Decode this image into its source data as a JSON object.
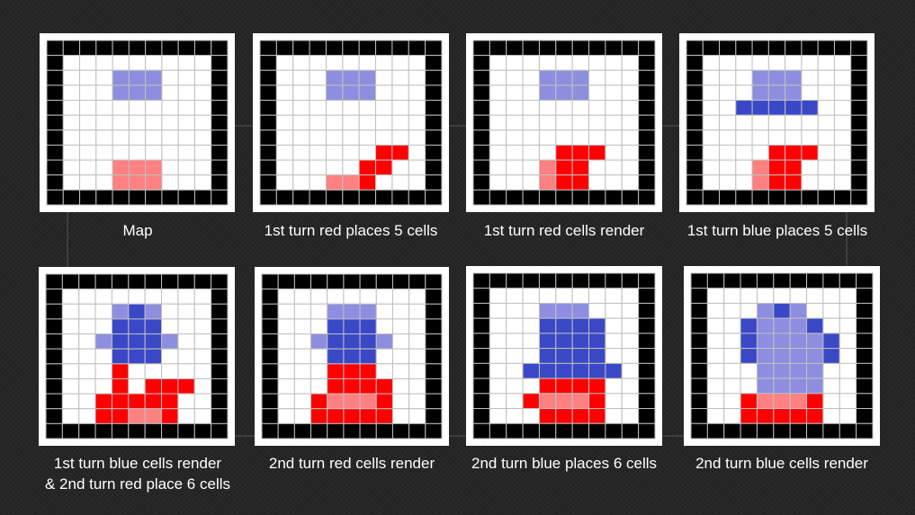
{
  "colors": {
    "wall": "#000000",
    "empty": "#ffffff",
    "grid": "#bfbfbf",
    "red_placed": "#ff8080",
    "red_render": "#ff0000",
    "blue_placed": "#8e8ee0",
    "blue_render": "#3a48c7",
    "text": "#ffffff",
    "background": "#262626"
  },
  "legend": {
    "W": "wall",
    ".": "empty",
    "r": "red_placed",
    "R": "red_render",
    "b": "blue_placed",
    "B": "blue_render"
  },
  "panels": [
    {
      "caption_lines": [
        "Map"
      ],
      "grid": [
        "WWWWWWWWWWW",
        "W.........W",
        "W...bbb...W",
        "W...bbb...W",
        "W.........W",
        "W.........W",
        "W.........W",
        "W.........W",
        "W...rrr...W",
        "W...rrr...W",
        "WWWWWWWWWWW"
      ]
    },
    {
      "caption_lines": [
        "1st turn red places 5 cells"
      ],
      "grid": [
        "WWWWWWWWWWW",
        "W.........W",
        "W...bbb...W",
        "W...bbb...W",
        "W.........W",
        "W.........W",
        "W.........W",
        "W......RR.W",
        "W.....RR..W",
        "W...rrR...W",
        "WWWWWWWWWWW"
      ]
    },
    {
      "caption_lines": [
        "1st turn red cells render"
      ],
      "grid": [
        "WWWWWWWWWWW",
        "W.........W",
        "W...bbb...W",
        "W...bbb...W",
        "W.........W",
        "W.........W",
        "W.........W",
        "W....RRR..W",
        "W...rRR...W",
        "W...rRR...W",
        "WWWWWWWWWWW"
      ]
    },
    {
      "caption_lines": [
        "1st turn blue places 5 cells"
      ],
      "grid": [
        "WWWWWWWWWWW",
        "W.........W",
        "W...bbb...W",
        "W...bbb...W",
        "W..BBBBB..W",
        "W.........W",
        "W.........W",
        "W....RRR..W",
        "W...rRR...W",
        "W...rRR...W",
        "WWWWWWWWWWW"
      ]
    },
    {
      "caption_lines": [
        "1st turn blue cells render",
        "& 2nd turn red place 6 cells"
      ],
      "grid": [
        "WWWWWWWWWWW",
        "W.........W",
        "W...bBb...W",
        "W...BBB...W",
        "W..bBBBb..W",
        "W...BBB...W",
        "W...R.....W",
        "W...R.RRR.W",
        "W..RRRRR..W",
        "W..RRrrR..W",
        "WWWWWWWWWWW"
      ]
    },
    {
      "caption_lines": [
        "2nd turn red cells render"
      ],
      "grid": [
        "WWWWWWWWWWW",
        "W.........W",
        "W...bbb...W",
        "W...BBB...W",
        "W..bBBBb..W",
        "W...BBB...W",
        "W...RRR...W",
        "W...RRRR..W",
        "W..RrrrR..W",
        "W..RRRRR..W",
        "WWWWWWWWWWW"
      ]
    },
    {
      "caption_lines": [
        "2nd turn blue places 6 cells"
      ],
      "grid": [
        "WWWWWWWWWWW",
        "W.........W",
        "W...bbb...W",
        "W...BBBB..W",
        "W...BBBB..W",
        "W...BBBB..W",
        "W..BBBBBB.W",
        "W...RRRR..W",
        "W..RrrrR..W",
        "W...RRRR..W",
        "WWWWWWWWWWW"
      ]
    },
    {
      "caption_lines": [
        "2nd turn blue cells render"
      ],
      "grid": [
        "WWWWWWWWWWW",
        "W.........W",
        "W...bBb...W",
        "W..BbbbB..W",
        "W..BbbbbB.W",
        "W..BbbbbB.W",
        "W...bbbb..W",
        "W...bbbb..W",
        "W..RrrrR..W",
        "W..RRRRR..W",
        "WWWWWWWWWWW"
      ]
    }
  ]
}
